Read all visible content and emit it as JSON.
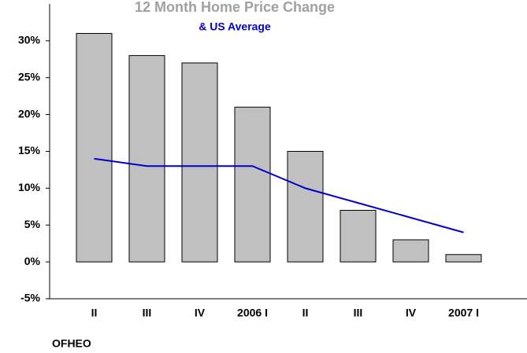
{
  "chart_data": {
    "type": "bar",
    "title": "12 Month Home Price Change",
    "subtitle": "& US Average",
    "source": "OFHEO",
    "categories": [
      "II",
      "III",
      "IV",
      "2006 I",
      "II",
      "III",
      "IV",
      "2007 I"
    ],
    "series": [
      {
        "type": "bar",
        "color": "#c0c0c0",
        "values": [
          31,
          28,
          27,
          21,
          15,
          7,
          3,
          1
        ]
      },
      {
        "type": "line",
        "color": "#0000cc",
        "values": [
          14,
          13,
          13,
          13,
          10,
          8,
          6,
          4
        ]
      }
    ],
    "ylim": [
      -5,
      35
    ],
    "yticks": [
      {
        "value": -5,
        "label": "-5%"
      },
      {
        "value": 0,
        "label": "0%"
      },
      {
        "value": 5,
        "label": "5%"
      },
      {
        "value": 10,
        "label": "10%"
      },
      {
        "value": 15,
        "label": "15%"
      },
      {
        "value": 20,
        "label": "20%"
      },
      {
        "value": 25,
        "label": "25%"
      },
      {
        "value": 30,
        "label": "30%"
      }
    ],
    "grid": false
  }
}
